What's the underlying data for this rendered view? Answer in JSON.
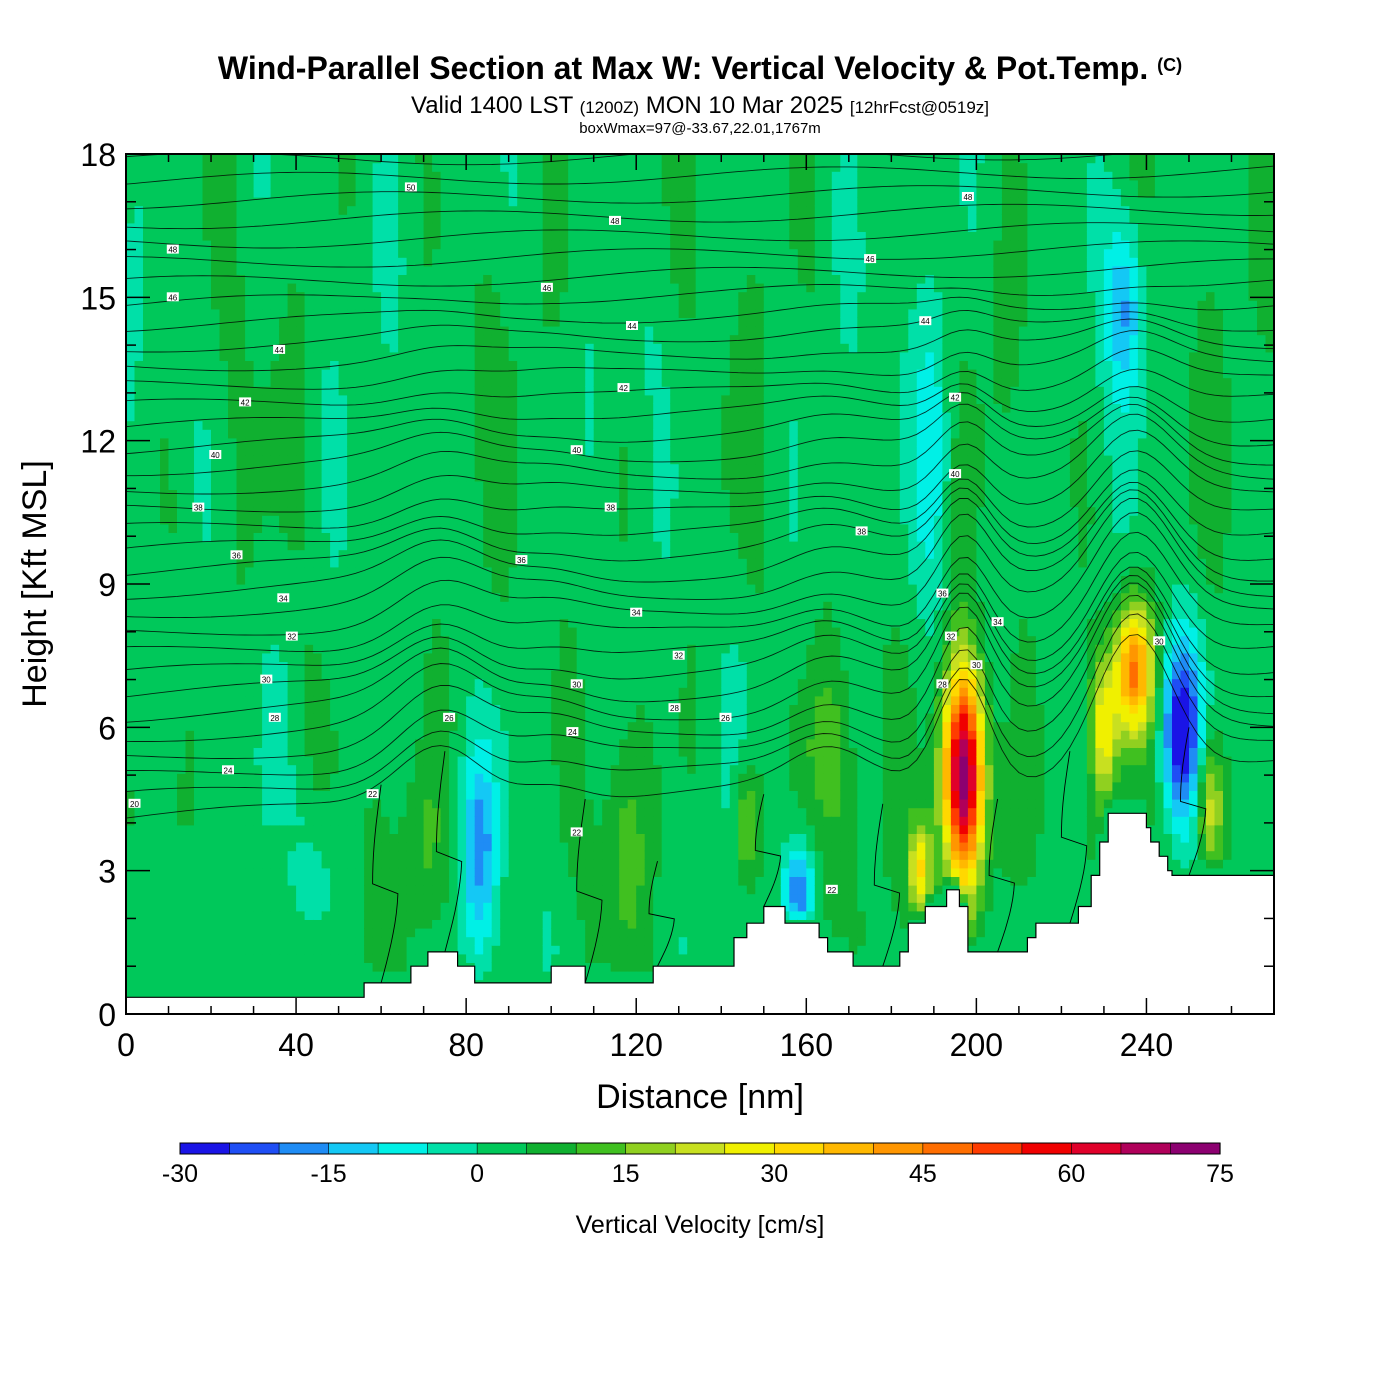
{
  "title": {
    "main": "Wind-Parallel Section at Max W: Vertical Velocity & Pot.Temp.",
    "copyright": "(C)",
    "valid_prefix": "Valid 1400 LST",
    "valid_utc": "(1200Z)",
    "valid_date": "MON 10 Mar 2025",
    "forecast": "[12hrFcst@0519z]",
    "box_info": "boxWmax=97@-33.67,22.01,1767m"
  },
  "chart_data": {
    "type": "heatmap",
    "title": "Wind-Parallel Section at Max W: Vertical Velocity & Pot.Temp.",
    "xlabel": "Distance [nm]",
    "ylabel": "Height [Kft MSL]",
    "xlim": [
      0,
      270
    ],
    "ylim": [
      0,
      18
    ],
    "x_ticks": [
      0,
      40,
      80,
      120,
      160,
      200,
      240
    ],
    "y_ticks": [
      0,
      3,
      6,
      9,
      12,
      15,
      18
    ],
    "colorbar": {
      "label": "Vertical Velocity [cm/s]",
      "min": -30,
      "max": 80,
      "step": 5,
      "tick_values": [
        -30,
        -15,
        0,
        15,
        30,
        45,
        60,
        75
      ],
      "colors": [
        "#1a14e6",
        "#1f4ef5",
        "#1f8cf5",
        "#14c8f5",
        "#00f0e6",
        "#00e0a8",
        "#00c85a",
        "#10b030",
        "#40c020",
        "#90d020",
        "#c8e020",
        "#f0f000",
        "#ffd800",
        "#ffb800",
        "#ff9600",
        "#ff6e00",
        "#ff3c00",
        "#f00000",
        "#e0002a",
        "#b0005a",
        "#8c0070"
      ]
    },
    "terrain_kft": [
      [
        0,
        0.35
      ],
      [
        56,
        0.35
      ],
      [
        56,
        0.65
      ],
      [
        67,
        0.65
      ],
      [
        67,
        1.0
      ],
      [
        71,
        1.0
      ],
      [
        71,
        1.3
      ],
      [
        78,
        1.3
      ],
      [
        78,
        1.0
      ],
      [
        82,
        1.0
      ],
      [
        82,
        0.65
      ],
      [
        100,
        0.65
      ],
      [
        100,
        1.0
      ],
      [
        108,
        1.0
      ],
      [
        108,
        0.65
      ],
      [
        124,
        0.65
      ],
      [
        124,
        1.0
      ],
      [
        143,
        1.0
      ],
      [
        143,
        1.6
      ],
      [
        146,
        1.6
      ],
      [
        146,
        1.9
      ],
      [
        150,
        1.9
      ],
      [
        150,
        2.25
      ],
      [
        155,
        2.25
      ],
      [
        155,
        1.9
      ],
      [
        163,
        1.9
      ],
      [
        163,
        1.6
      ],
      [
        165,
        1.6
      ],
      [
        165,
        1.3
      ],
      [
        171,
        1.3
      ],
      [
        171,
        1.0
      ],
      [
        182,
        1.0
      ],
      [
        182,
        1.3
      ],
      [
        184,
        1.3
      ],
      [
        184,
        1.9
      ],
      [
        188,
        1.9
      ],
      [
        188,
        2.25
      ],
      [
        193,
        2.25
      ],
      [
        193,
        2.6
      ],
      [
        196,
        2.6
      ],
      [
        196,
        2.25
      ],
      [
        198,
        2.25
      ],
      [
        198,
        1.3
      ],
      [
        212,
        1.3
      ],
      [
        212,
        1.6
      ],
      [
        214,
        1.6
      ],
      [
        214,
        1.9
      ],
      [
        224,
        1.9
      ],
      [
        224,
        2.25
      ],
      [
        227,
        2.25
      ],
      [
        227,
        2.9
      ],
      [
        229,
        2.9
      ],
      [
        229,
        3.6
      ],
      [
        231,
        3.6
      ],
      [
        231,
        4.2
      ],
      [
        240,
        4.2
      ],
      [
        240,
        3.9
      ],
      [
        241,
        3.9
      ],
      [
        241,
        3.6
      ],
      [
        243,
        3.6
      ],
      [
        243,
        3.3
      ],
      [
        245,
        3.3
      ],
      [
        245,
        3.0
      ],
      [
        246,
        3.0
      ],
      [
        246,
        2.9
      ],
      [
        270,
        2.9
      ]
    ],
    "updrafts": [
      {
        "x": 197,
        "z": 5.0,
        "wmax": 75
      },
      {
        "x": 237,
        "z": 7.2,
        "wmax": 45
      },
      {
        "x": 187,
        "z": 3.0,
        "wmax": 30
      },
      {
        "x": 230,
        "z": 6.0,
        "wmax": 28
      },
      {
        "x": 255,
        "z": 4.3,
        "wmax": 25
      },
      {
        "x": 146,
        "z": 4.0,
        "wmax": 20
      },
      {
        "x": 165,
        "z": 5.5,
        "wmax": 12
      },
      {
        "x": 117,
        "z": 3.5,
        "wmax": 11
      },
      {
        "x": 70,
        "z": 3.5,
        "wmax": 10
      },
      {
        "x": 208,
        "z": 4.0,
        "wmax": 10
      }
    ],
    "downdrafts": [
      {
        "x": 248,
        "z": 6.0,
        "wmin": -30
      },
      {
        "x": 158,
        "z": 2.5,
        "wmin": -18
      },
      {
        "x": 83,
        "z": 3.5,
        "wmin": -15
      },
      {
        "x": 44,
        "z": 2.2,
        "wmin": -12
      },
      {
        "x": 235,
        "z": 14.8,
        "wmin": -14
      },
      {
        "x": 190,
        "z": 12.0,
        "wmin": -8
      }
    ],
    "theta_labels": [
      {
        "x": 2,
        "z": 4.4,
        "label": "20"
      },
      {
        "x": 24,
        "z": 5.1,
        "label": "24"
      },
      {
        "x": 35,
        "z": 6.2,
        "label": "28"
      },
      {
        "x": 33,
        "z": 7.0,
        "label": "30"
      },
      {
        "x": 39,
        "z": 7.9,
        "label": "32"
      },
      {
        "x": 37,
        "z": 8.7,
        "label": "34"
      },
      {
        "x": 26,
        "z": 9.6,
        "label": "36"
      },
      {
        "x": 17,
        "z": 10.6,
        "label": "38"
      },
      {
        "x": 21,
        "z": 11.7,
        "label": "40"
      },
      {
        "x": 28,
        "z": 12.8,
        "label": "42"
      },
      {
        "x": 36,
        "z": 13.9,
        "label": "44"
      },
      {
        "x": 11,
        "z": 15.0,
        "label": "46"
      },
      {
        "x": 11,
        "z": 16.0,
        "label": "48"
      },
      {
        "x": 67,
        "z": 17.3,
        "label": "50"
      },
      {
        "x": 58,
        "z": 4.6,
        "label": "22"
      },
      {
        "x": 76,
        "z": 6.2,
        "label": "26"
      },
      {
        "x": 105,
        "z": 5.9,
        "label": "24"
      },
      {
        "x": 106,
        "z": 6.9,
        "label": "30"
      },
      {
        "x": 129,
        "z": 6.4,
        "label": "28"
      },
      {
        "x": 130,
        "z": 7.5,
        "label": "32"
      },
      {
        "x": 120,
        "z": 8.4,
        "label": "34"
      },
      {
        "x": 93,
        "z": 9.5,
        "label": "36"
      },
      {
        "x": 114,
        "z": 10.6,
        "label": "38"
      },
      {
        "x": 106,
        "z": 11.8,
        "label": "40"
      },
      {
        "x": 117,
        "z": 13.1,
        "label": "42"
      },
      {
        "x": 119,
        "z": 14.4,
        "label": "44"
      },
      {
        "x": 99,
        "z": 15.2,
        "label": "46"
      },
      {
        "x": 115,
        "z": 16.6,
        "label": "48"
      },
      {
        "x": 141,
        "z": 6.2,
        "label": "26"
      },
      {
        "x": 106,
        "z": 3.8,
        "label": "22"
      },
      {
        "x": 166,
        "z": 2.6,
        "label": "22"
      },
      {
        "x": 173,
        "z": 10.1,
        "label": "38"
      },
      {
        "x": 175,
        "z": 15.8,
        "label": "46"
      },
      {
        "x": 192,
        "z": 8.8,
        "label": "36"
      },
      {
        "x": 194,
        "z": 7.9,
        "label": "32"
      },
      {
        "x": 192,
        "z": 6.9,
        "label": "28"
      },
      {
        "x": 200,
        "z": 7.3,
        "label": "30"
      },
      {
        "x": 205,
        "z": 8.2,
        "label": "34"
      },
      {
        "x": 195,
        "z": 11.3,
        "label": "40"
      },
      {
        "x": 195,
        "z": 12.9,
        "label": "42"
      },
      {
        "x": 188,
        "z": 14.5,
        "label": "44"
      },
      {
        "x": 198,
        "z": 17.1,
        "label": "48"
      },
      {
        "x": 243,
        "z": 7.8,
        "label": "30"
      }
    ]
  }
}
